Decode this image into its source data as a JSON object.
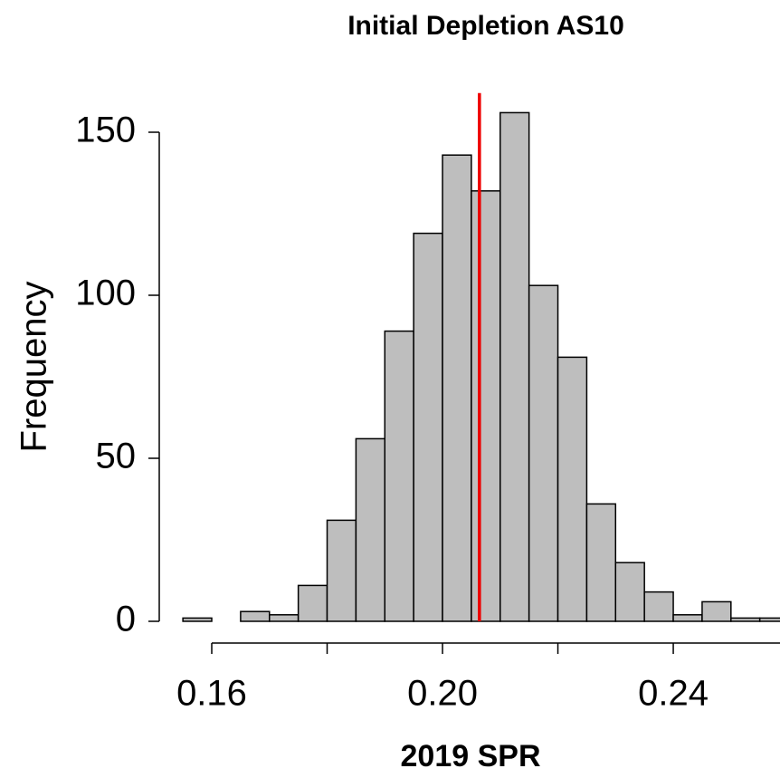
{
  "chart_data": {
    "type": "histogram",
    "title": "Initial Depletion AS10",
    "x_label": "2019 SPR",
    "y_label": "Frequency",
    "bins": [
      0.155,
      0.16,
      0.165,
      0.17,
      0.175,
      0.18,
      0.185,
      0.19,
      0.195,
      0.2,
      0.205,
      0.21,
      0.215,
      0.22,
      0.225,
      0.23,
      0.235,
      0.24,
      0.245,
      0.25,
      0.255,
      0.26
    ],
    "values": [
      1,
      0,
      3,
      2,
      11,
      31,
      56,
      89,
      119,
      143,
      132,
      156,
      103,
      81,
      36,
      18,
      9,
      2,
      6,
      1,
      1
    ],
    "color": "#bebebe",
    "xlim": [
      0.15,
      0.2585
    ],
    "ylim": [
      0,
      162
    ],
    "xticks": [
      0.16,
      {
        "value": 0.2,
        "label": "0.20"
      },
      0.24
    ],
    "xminor_ticks": [
      0.18,
      0.22
    ],
    "yticks": [
      0,
      50,
      100,
      150
    ],
    "vline": {
      "value": 0.2064,
      "color": "#ee0000"
    }
  }
}
